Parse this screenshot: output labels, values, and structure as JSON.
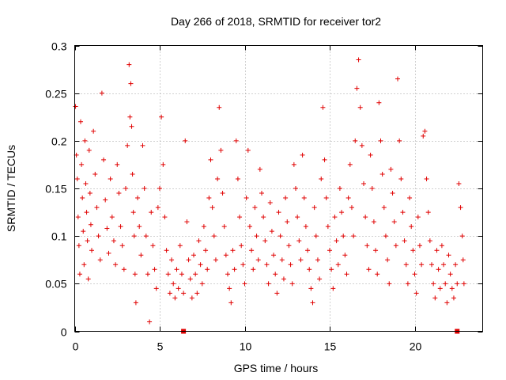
{
  "chart_data": {
    "type": "scatter",
    "title": "Day 266 of 2018, SRMTID for receiver tor2",
    "xlabel": "GPS time / hours",
    "ylabel": "SRMTID / TECUs",
    "xlim": [
      0,
      24
    ],
    "ylim": [
      0,
      0.3
    ],
    "xticks": [
      0,
      5,
      10,
      15,
      20
    ],
    "xtick_labels": [
      "0",
      "5",
      "10",
      "15",
      "20"
    ],
    "yticks": [
      0,
      0.05,
      0.1,
      0.15,
      0.2,
      0.25,
      0.3
    ],
    "ytick_labels": [
      "0",
      "0.05",
      "0.1",
      "0.15",
      "0.2",
      "0.25",
      "0.3"
    ],
    "grid": true,
    "marker": "+",
    "series_color": "#e00000",
    "zero_markers_x": [
      6.4,
      22.5
    ],
    "series": [
      {
        "name": "SRMTID",
        "points": [
          [
            0.05,
            0.236
          ],
          [
            0.1,
            0.185
          ],
          [
            0.15,
            0.16
          ],
          [
            0.2,
            0.12
          ],
          [
            0.25,
            0.09
          ],
          [
            0.3,
            0.06
          ],
          [
            0.35,
            0.22
          ],
          [
            0.4,
            0.175
          ],
          [
            0.45,
            0.14
          ],
          [
            0.5,
            0.105
          ],
          [
            0.55,
            0.07
          ],
          [
            0.6,
            0.2
          ],
          [
            0.65,
            0.155
          ],
          [
            0.7,
            0.125
          ],
          [
            0.75,
            0.095
          ],
          [
            0.8,
            0.055
          ],
          [
            0.85,
            0.19
          ],
          [
            0.9,
            0.145
          ],
          [
            0.95,
            0.112
          ],
          [
            1.0,
            0.085
          ],
          [
            1.1,
            0.21
          ],
          [
            1.2,
            0.165
          ],
          [
            1.3,
            0.13
          ],
          [
            1.4,
            0.1
          ],
          [
            1.5,
            0.075
          ],
          [
            1.6,
            0.25
          ],
          [
            1.7,
            0.18
          ],
          [
            1.8,
            0.138
          ],
          [
            1.9,
            0.108
          ],
          [
            2.0,
            0.082
          ],
          [
            2.1,
            0.16
          ],
          [
            2.2,
            0.12
          ],
          [
            2.3,
            0.095
          ],
          [
            2.4,
            0.07
          ],
          [
            2.5,
            0.175
          ],
          [
            2.6,
            0.145
          ],
          [
            2.7,
            0.11
          ],
          [
            2.8,
            0.09
          ],
          [
            2.9,
            0.065
          ],
          [
            3.0,
            0.15
          ],
          [
            3.1,
            0.195
          ],
          [
            3.2,
            0.28
          ],
          [
            3.25,
            0.225
          ],
          [
            3.3,
            0.26
          ],
          [
            3.35,
            0.215
          ],
          [
            3.4,
            0.165
          ],
          [
            3.45,
            0.125
          ],
          [
            3.5,
            0.1
          ],
          [
            3.55,
            0.06
          ],
          [
            3.6,
            0.03
          ],
          [
            3.7,
            0.14
          ],
          [
            3.8,
            0.11
          ],
          [
            3.9,
            0.08
          ],
          [
            4.0,
            0.195
          ],
          [
            4.1,
            0.15
          ],
          [
            4.2,
            0.1
          ],
          [
            4.3,
            0.06
          ],
          [
            4.4,
            0.01
          ],
          [
            4.5,
            0.125
          ],
          [
            4.6,
            0.09
          ],
          [
            4.7,
            0.065
          ],
          [
            4.8,
            0.045
          ],
          [
            4.9,
            0.13
          ],
          [
            5.0,
            0.15
          ],
          [
            5.1,
            0.225
          ],
          [
            5.2,
            0.175
          ],
          [
            5.3,
            0.12
          ],
          [
            5.4,
            0.085
          ],
          [
            5.5,
            0.06
          ],
          [
            5.6,
            0.04
          ],
          [
            5.7,
            0.075
          ],
          [
            5.8,
            0.05
          ],
          [
            5.9,
            0.035
          ],
          [
            6.0,
            0.065
          ],
          [
            6.1,
            0.045
          ],
          [
            6.2,
            0.09
          ],
          [
            6.3,
            0.06
          ],
          [
            6.4,
            0.04
          ],
          [
            6.5,
            0.2
          ],
          [
            6.6,
            0.115
          ],
          [
            6.7,
            0.075
          ],
          [
            6.8,
            0.055
          ],
          [
            6.9,
            0.035
          ],
          [
            7.0,
            0.08
          ],
          [
            7.1,
            0.06
          ],
          [
            7.2,
            0.04
          ],
          [
            7.3,
            0.095
          ],
          [
            7.4,
            0.07
          ],
          [
            7.5,
            0.05
          ],
          [
            7.6,
            0.11
          ],
          [
            7.7,
            0.085
          ],
          [
            7.8,
            0.065
          ],
          [
            7.9,
            0.14
          ],
          [
            8.0,
            0.18
          ],
          [
            8.1,
            0.13
          ],
          [
            8.2,
            0.1
          ],
          [
            8.3,
            0.075
          ],
          [
            8.4,
            0.16
          ],
          [
            8.5,
            0.235
          ],
          [
            8.6,
            0.19
          ],
          [
            8.7,
            0.145
          ],
          [
            8.8,
            0.11
          ],
          [
            8.9,
            0.08
          ],
          [
            9.0,
            0.06
          ],
          [
            9.1,
            0.045
          ],
          [
            9.2,
            0.03
          ],
          [
            9.3,
            0.085
          ],
          [
            9.4,
            0.065
          ],
          [
            9.5,
            0.2
          ],
          [
            9.6,
            0.16
          ],
          [
            9.7,
            0.12
          ],
          [
            9.8,
            0.09
          ],
          [
            9.9,
            0.07
          ],
          [
            10.0,
            0.05
          ],
          [
            10.1,
            0.14
          ],
          [
            10.2,
            0.19
          ],
          [
            10.3,
            0.11
          ],
          [
            10.4,
            0.085
          ],
          [
            10.5,
            0.065
          ],
          [
            10.6,
            0.13
          ],
          [
            10.7,
            0.1
          ],
          [
            10.8,
            0.075
          ],
          [
            10.9,
            0.17
          ],
          [
            11.0,
            0.145
          ],
          [
            11.1,
            0.12
          ],
          [
            11.2,
            0.095
          ],
          [
            11.3,
            0.07
          ],
          [
            11.4,
            0.05
          ],
          [
            11.5,
            0.135
          ],
          [
            11.6,
            0.105
          ],
          [
            11.7,
            0.08
          ],
          [
            11.8,
            0.06
          ],
          [
            11.9,
            0.04
          ],
          [
            12.0,
            0.125
          ],
          [
            12.1,
            0.1
          ],
          [
            12.2,
            0.075
          ],
          [
            12.3,
            0.055
          ],
          [
            12.4,
            0.14
          ],
          [
            12.5,
            0.115
          ],
          [
            12.6,
            0.09
          ],
          [
            12.7,
            0.07
          ],
          [
            12.8,
            0.05
          ],
          [
            12.9,
            0.175
          ],
          [
            13.0,
            0.15
          ],
          [
            13.1,
            0.12
          ],
          [
            13.2,
            0.095
          ],
          [
            13.3,
            0.075
          ],
          [
            13.4,
            0.185
          ],
          [
            13.5,
            0.14
          ],
          [
            13.6,
            0.11
          ],
          [
            13.7,
            0.085
          ],
          [
            13.8,
            0.065
          ],
          [
            13.9,
            0.045
          ],
          [
            14.0,
            0.03
          ],
          [
            14.1,
            0.13
          ],
          [
            14.2,
            0.1
          ],
          [
            14.3,
            0.075
          ],
          [
            14.4,
            0.055
          ],
          [
            14.5,
            0.16
          ],
          [
            14.6,
            0.235
          ],
          [
            14.7,
            0.18
          ],
          [
            14.8,
            0.14
          ],
          [
            14.9,
            0.11
          ],
          [
            15.0,
            0.085
          ],
          [
            15.1,
            0.065
          ],
          [
            15.2,
            0.045
          ],
          [
            15.3,
            0.12
          ],
          [
            15.4,
            0.095
          ],
          [
            15.5,
            0.07
          ],
          [
            15.6,
            0.15
          ],
          [
            15.7,
            0.125
          ],
          [
            15.8,
            0.1
          ],
          [
            15.9,
            0.08
          ],
          [
            16.0,
            0.06
          ],
          [
            16.1,
            0.14
          ],
          [
            16.2,
            0.175
          ],
          [
            16.3,
            0.13
          ],
          [
            16.4,
            0.1
          ],
          [
            16.5,
            0.2
          ],
          [
            16.6,
            0.255
          ],
          [
            16.7,
            0.285
          ],
          [
            16.8,
            0.235
          ],
          [
            16.9,
            0.195
          ],
          [
            17.0,
            0.155
          ],
          [
            17.1,
            0.12
          ],
          [
            17.2,
            0.09
          ],
          [
            17.3,
            0.065
          ],
          [
            17.4,
            0.185
          ],
          [
            17.5,
            0.15
          ],
          [
            17.6,
            0.115
          ],
          [
            17.7,
            0.085
          ],
          [
            17.8,
            0.06
          ],
          [
            17.9,
            0.24
          ],
          [
            18.0,
            0.2
          ],
          [
            18.1,
            0.165
          ],
          [
            18.2,
            0.13
          ],
          [
            18.3,
            0.1
          ],
          [
            18.4,
            0.075
          ],
          [
            18.5,
            0.05
          ],
          [
            18.6,
            0.17
          ],
          [
            18.7,
            0.145
          ],
          [
            18.8,
            0.115
          ],
          [
            18.9,
            0.09
          ],
          [
            19.0,
            0.265
          ],
          [
            19.1,
            0.2
          ],
          [
            19.2,
            0.16
          ],
          [
            19.3,
            0.125
          ],
          [
            19.4,
            0.095
          ],
          [
            19.5,
            0.07
          ],
          [
            19.6,
            0.05
          ],
          [
            19.7,
            0.14
          ],
          [
            19.8,
            0.11
          ],
          [
            19.9,
            0.085
          ],
          [
            20.0,
            0.06
          ],
          [
            20.1,
            0.04
          ],
          [
            20.2,
            0.12
          ],
          [
            20.3,
            0.09
          ],
          [
            20.4,
            0.07
          ],
          [
            20.5,
            0.205
          ],
          [
            20.6,
            0.21
          ],
          [
            20.7,
            0.16
          ],
          [
            20.8,
            0.125
          ],
          [
            20.9,
            0.095
          ],
          [
            21.0,
            0.07
          ],
          [
            21.1,
            0.05
          ],
          [
            21.2,
            0.035
          ],
          [
            21.3,
            0.085
          ],
          [
            21.4,
            0.065
          ],
          [
            21.5,
            0.045
          ],
          [
            21.6,
            0.09
          ],
          [
            21.7,
            0.07
          ],
          [
            21.8,
            0.05
          ],
          [
            21.9,
            0.03
          ],
          [
            22.0,
            0.08
          ],
          [
            22.1,
            0.06
          ],
          [
            22.2,
            0.045
          ],
          [
            22.3,
            0.035
          ],
          [
            22.4,
            0.07
          ],
          [
            22.5,
            0.05
          ],
          [
            22.6,
            0.155
          ],
          [
            22.7,
            0.13
          ],
          [
            22.8,
            0.1
          ],
          [
            22.85,
            0.075
          ],
          [
            22.9,
            0.05
          ]
        ]
      }
    ]
  }
}
